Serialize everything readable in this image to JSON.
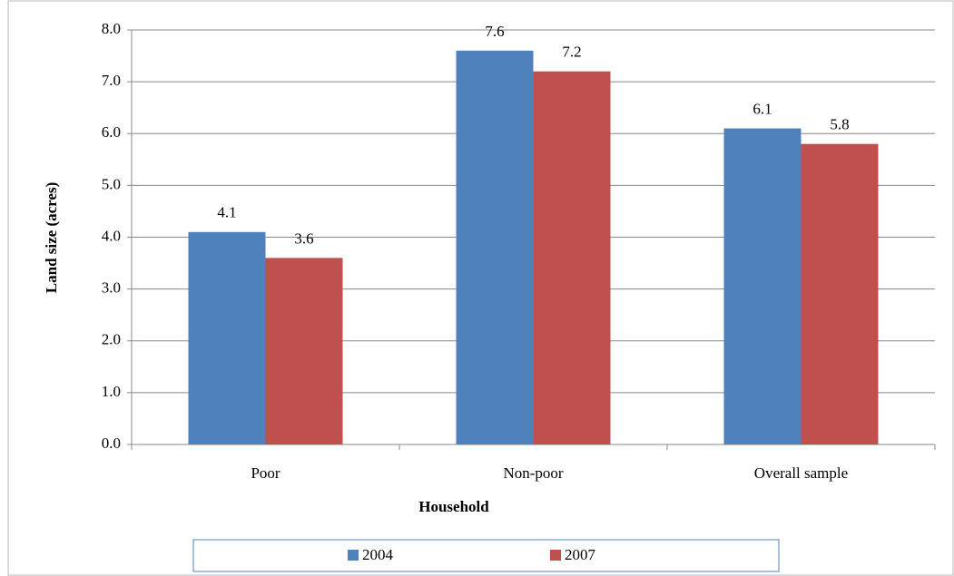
{
  "chart_data": {
    "type": "bar",
    "categories": [
      "Poor",
      "Non-poor",
      "Overall sample"
    ],
    "series": [
      {
        "name": "2004",
        "color": "#4f81bd",
        "values": [
          4.1,
          7.6,
          6.1
        ]
      },
      {
        "name": "2007",
        "color": "#c0504d",
        "values": [
          3.6,
          7.2,
          5.8
        ]
      }
    ],
    "x_label": "Household",
    "y_label": "Land size (acres)",
    "ylim": [
      0,
      8
    ],
    "yticks": [
      {
        "value": 0,
        "label": "0.0"
      },
      {
        "value": 1,
        "label": "1.0"
      },
      {
        "value": 2,
        "label": "2.0"
      },
      {
        "value": 3,
        "label": "3.0"
      },
      {
        "value": 4,
        "label": "4.0"
      },
      {
        "value": 5,
        "label": "5.0"
      },
      {
        "value": 6,
        "label": "6.0"
      },
      {
        "value": 7,
        "label": "7.0"
      },
      {
        "value": 8,
        "label": "8.0"
      }
    ],
    "grid": true,
    "legend": "bottom"
  }
}
